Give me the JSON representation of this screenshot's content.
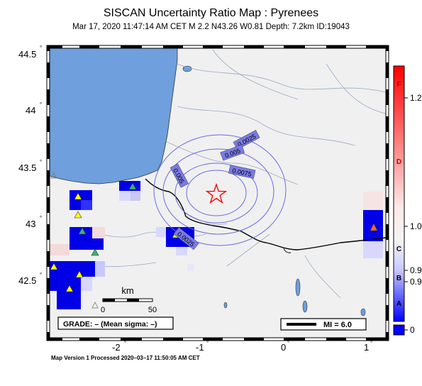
{
  "header": {
    "title": "SISCAN Uncertainty Ratio Map : Pyrenees",
    "subtitle": "Mar 17, 2020 11:47:14 AM CET   M 2.2   N43.26 W0.81   Depth: 7.2km   ID:19043"
  },
  "axes": {
    "lat_ticks": [
      "44.5",
      "44",
      "43.5",
      "43",
      "42.5"
    ],
    "lon_ticks": [
      "-2",
      "-1",
      "0",
      "1"
    ],
    "degree_mark": "°"
  },
  "contours": {
    "labels": [
      "0.0025",
      "0.005",
      "0.0075",
      "0.005",
      "0.0025"
    ]
  },
  "epicenter": {
    "lat": 43.26,
    "lon": -0.81,
    "symbol": "star",
    "color": "#ff0000"
  },
  "scale_bar": {
    "unit": "km",
    "ticks": [
      "0",
      "50"
    ]
  },
  "grade_box": {
    "text": "GRADE: – (Mean sigma: –)"
  },
  "mi_box": {
    "text": "MI = 6.0"
  },
  "colorbar": {
    "grades": [
      "F",
      "D",
      "C",
      "B",
      "A"
    ],
    "values": [
      "1.2",
      "1.0",
      "0.9",
      "0.9",
      "0"
    ],
    "colors": {
      "top": "#ff0000",
      "mid": "#f4f4f4",
      "bottom": "#0000ff"
    }
  },
  "footer": {
    "text": "Map Version 1 Processed 2020–03–17 11:50:05 AM CET"
  },
  "colors": {
    "land": "#f0f0f0",
    "sea": "#6f9fdc",
    "frame": "#000000",
    "cell_blue": "#0000e6",
    "station_yellow": "#ffff00",
    "station_green": "#3cb371",
    "station_orange": "#ff6a1a"
  }
}
